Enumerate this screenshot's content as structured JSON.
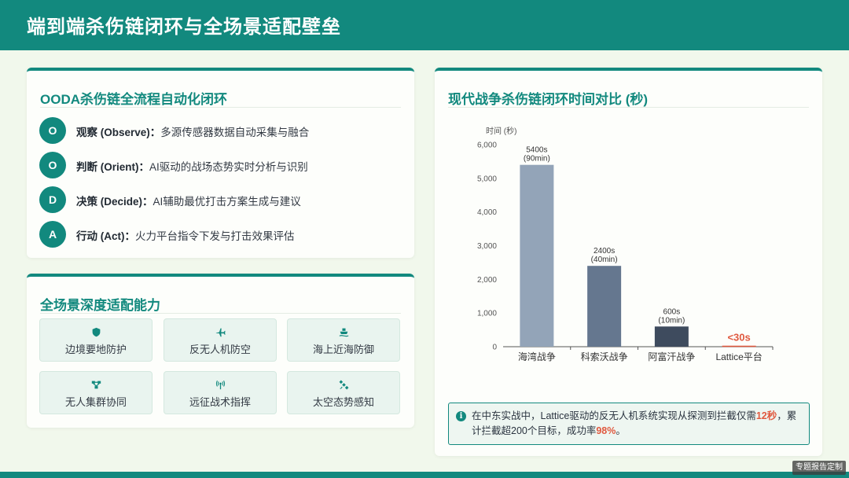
{
  "page": {
    "title": "端到端杀伤链闭环与全场景适配壁垒"
  },
  "ooda": {
    "title": "OODA杀伤链全流程自动化闭环",
    "items": [
      {
        "letter": "O",
        "name": "观察 (Observe)：",
        "desc": "多源传感器数据自动采集与融合"
      },
      {
        "letter": "O",
        "name": "判断 (Orient)：",
        "desc": "AI驱动的战场态势实时分析与识别"
      },
      {
        "letter": "D",
        "name": "决策 (Decide)：",
        "desc": "AI辅助最优打击方案生成与建议"
      },
      {
        "letter": "A",
        "name": "行动 (Act)：",
        "desc": "火力平台指令下发与打击效果评估"
      }
    ]
  },
  "capabilities": {
    "title": "全场景深度适配能力",
    "items": [
      {
        "icon": "shield-icon",
        "label": "边境要地防护"
      },
      {
        "icon": "plane-icon",
        "label": "反无人机防空"
      },
      {
        "icon": "ship-icon",
        "label": "海上近海防御"
      },
      {
        "icon": "network-icon",
        "label": "无人集群协同"
      },
      {
        "icon": "antenna-icon",
        "label": "远征战术指挥"
      },
      {
        "icon": "satellite-icon",
        "label": "太空态势感知"
      }
    ]
  },
  "chart_section": {
    "title": "现代战争杀伤链闭环时间对比 (秒)"
  },
  "chart_data": {
    "type": "bar",
    "ylabel": "时间 (秒)",
    "ylim": [
      0,
      6000
    ],
    "yticks": [
      "0",
      "1,000",
      "2,000",
      "3,000",
      "4,000",
      "5,000",
      "6,000"
    ],
    "categories": [
      "海湾战争",
      "科索沃战争",
      "阿富汗战争",
      "Lattice平台"
    ],
    "values": [
      5400,
      2400,
      600,
      30
    ],
    "labels": [
      [
        "5400s",
        "(90min)"
      ],
      [
        "2400s",
        "(40min)"
      ],
      [
        "600s",
        "(10min)"
      ],
      [
        "<30s"
      ]
    ],
    "colors": [
      "#93a4b8",
      "#65778f",
      "#3e4b5e",
      "#e0593f"
    ],
    "grid": false
  },
  "info": {
    "icon": "info-icon",
    "text_1": "在中东实战中，Lattice驱动的反无人机系统实现从探测到拦截仅需",
    "highlight_1": "12秒",
    "text_2": "，累计拦截超200个目标，成功率",
    "highlight_2": "98%",
    "text_3": "。"
  },
  "watermark": "专题报告定制"
}
